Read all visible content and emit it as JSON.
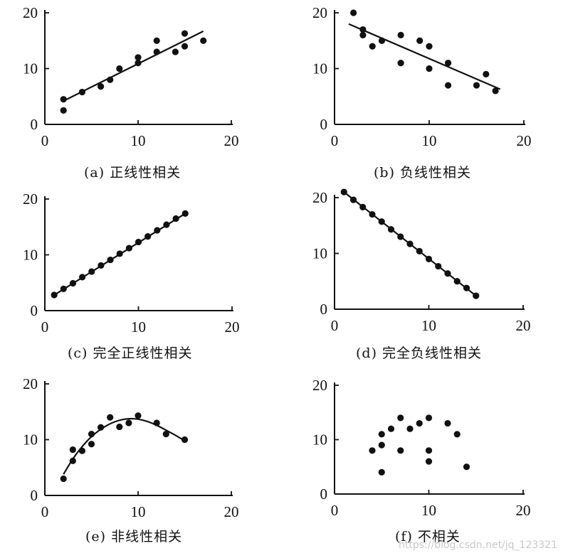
{
  "chart_data": [
    {
      "type": "scatter",
      "caption": "(a) 正线性相关",
      "xlim": [
        0,
        20
      ],
      "ylim": [
        0,
        20
      ],
      "xticks": [
        0,
        10,
        20
      ],
      "yticks": [
        0,
        10,
        20
      ],
      "points": [
        [
          2,
          2.5
        ],
        [
          2,
          4.5
        ],
        [
          4,
          5.8
        ],
        [
          6,
          6.8
        ],
        [
          7,
          8
        ],
        [
          8,
          10
        ],
        [
          10,
          11
        ],
        [
          10,
          12
        ],
        [
          12,
          13
        ],
        [
          12,
          15
        ],
        [
          14,
          13
        ],
        [
          15,
          14
        ],
        [
          15,
          16.3
        ],
        [
          17,
          15
        ]
      ],
      "fit": {
        "kind": "line",
        "points": [
          [
            2,
            4.2
          ],
          [
            17,
            16.7
          ]
        ]
      }
    },
    {
      "type": "scatter",
      "caption": "(b) 负线性相关",
      "xlim": [
        0,
        20
      ],
      "ylim": [
        0,
        20
      ],
      "xticks": [
        0,
        10,
        20
      ],
      "yticks": [
        0,
        10,
        20
      ],
      "points": [
        [
          2,
          20
        ],
        [
          3,
          17
        ],
        [
          3,
          16
        ],
        [
          4,
          14
        ],
        [
          5,
          15
        ],
        [
          7,
          16
        ],
        [
          7,
          11
        ],
        [
          9,
          15
        ],
        [
          10,
          14
        ],
        [
          10,
          10
        ],
        [
          12,
          11
        ],
        [
          12,
          7
        ],
        [
          15,
          7
        ],
        [
          16,
          9
        ],
        [
          17,
          6
        ]
      ],
      "fit": {
        "kind": "line",
        "points": [
          [
            1.5,
            18
          ],
          [
            17.5,
            6.3
          ]
        ]
      }
    },
    {
      "type": "scatter",
      "caption": "(c) 完全正线性相关",
      "xlim": [
        0,
        20
      ],
      "ylim": [
        0,
        20
      ],
      "xticks": [
        0,
        10,
        20
      ],
      "yticks": [
        0,
        10,
        20
      ],
      "points": [
        [
          1,
          2.8
        ],
        [
          2,
          3.9
        ],
        [
          3,
          4.9
        ],
        [
          4,
          6.0
        ],
        [
          5,
          7.0
        ],
        [
          6,
          8.1
        ],
        [
          7,
          9.1
        ],
        [
          8,
          10.2
        ],
        [
          9,
          11.2
        ],
        [
          10,
          12.3
        ],
        [
          11,
          13.3
        ],
        [
          12,
          14.4
        ],
        [
          13,
          15.4
        ],
        [
          14,
          16.5
        ],
        [
          15,
          17.4
        ]
      ],
      "fit": {
        "kind": "line",
        "points": [
          [
            1,
            2.8
          ],
          [
            15,
            17.4
          ]
        ]
      }
    },
    {
      "type": "scatter",
      "caption": "(d) 完全负线性相关",
      "xlim": [
        0,
        20
      ],
      "ylim": [
        0,
        20
      ],
      "xticks": [
        0,
        10,
        20
      ],
      "yticks": [
        0,
        10,
        20
      ],
      "points": [
        [
          1,
          21
        ],
        [
          2,
          19.6
        ],
        [
          3,
          18.3
        ],
        [
          4,
          17
        ],
        [
          5,
          15.7
        ],
        [
          6,
          14.3
        ],
        [
          7,
          13
        ],
        [
          8,
          11.7
        ],
        [
          9,
          10.4
        ],
        [
          10,
          9
        ],
        [
          11,
          7.7
        ],
        [
          12,
          6.4
        ],
        [
          13,
          5
        ],
        [
          14,
          3.8
        ],
        [
          15,
          2.4
        ]
      ],
      "fit": {
        "kind": "line",
        "points": [
          [
            1,
            21
          ],
          [
            15,
            2.4
          ]
        ]
      }
    },
    {
      "type": "scatter",
      "caption": "(e) 非线性相关",
      "xlim": [
        0,
        20
      ],
      "ylim": [
        0,
        20
      ],
      "xticks": [
        0,
        10,
        20
      ],
      "yticks": [
        0,
        10,
        20
      ],
      "points": [
        [
          2,
          3
        ],
        [
          3,
          6.2
        ],
        [
          3,
          8.2
        ],
        [
          4,
          8
        ],
        [
          5,
          9.2
        ],
        [
          5,
          11
        ],
        [
          6,
          12.2
        ],
        [
          7,
          14
        ],
        [
          8,
          12.3
        ],
        [
          9,
          13
        ],
        [
          10,
          14.3
        ],
        [
          12,
          13
        ],
        [
          13,
          11
        ],
        [
          15,
          10
        ]
      ],
      "fit": {
        "kind": "curve",
        "points": [
          [
            2,
            3.8
          ],
          [
            3,
            6.6
          ],
          [
            4,
            8.8
          ],
          [
            5,
            10.6
          ],
          [
            6,
            11.9
          ],
          [
            7,
            12.9
          ],
          [
            8,
            13.5
          ],
          [
            9,
            13.8
          ],
          [
            10,
            13.7
          ],
          [
            11,
            13.3
          ],
          [
            12,
            12.6
          ],
          [
            13,
            11.7
          ],
          [
            14,
            10.8
          ],
          [
            15,
            9.8
          ]
        ]
      }
    },
    {
      "type": "scatter",
      "caption": "(f) 不相关",
      "xlim": [
        0,
        20
      ],
      "ylim": [
        0,
        20
      ],
      "xticks": [
        0,
        10,
        20
      ],
      "yticks": [
        0,
        10,
        20
      ],
      "points": [
        [
          4,
          8
        ],
        [
          5,
          11
        ],
        [
          5,
          9
        ],
        [
          5,
          4
        ],
        [
          6,
          12
        ],
        [
          7,
          14
        ],
        [
          7,
          8
        ],
        [
          8,
          12
        ],
        [
          9,
          13
        ],
        [
          10,
          14
        ],
        [
          10,
          8
        ],
        [
          10,
          6
        ],
        [
          12,
          13
        ],
        [
          13,
          11
        ],
        [
          14,
          5
        ]
      ],
      "fit": null
    }
  ],
  "watermark": "https://blog.csdn.net/jq_123321"
}
